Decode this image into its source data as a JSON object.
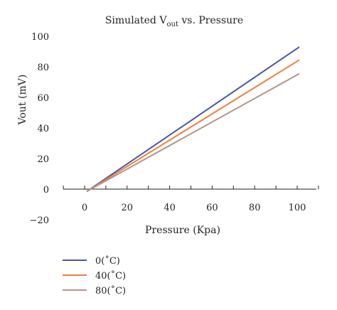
{
  "chart_data": {
    "type": "line",
    "title": {
      "prefix": "Simulated V",
      "subscript": "out",
      "suffix": " vs. Pressure"
    },
    "xlabel": "Pressure (Kpa)",
    "ylabel": "Vout (mV)",
    "xlim": [
      -10,
      105
    ],
    "ylim": [
      -20,
      100
    ],
    "xticks": [
      0,
      20,
      40,
      60,
      80,
      100
    ],
    "yticks": [
      -20,
      0,
      20,
      40,
      60,
      80,
      100
    ],
    "xtick_labels": [
      "0",
      "20",
      "40",
      "60",
      "80",
      "100"
    ],
    "ytick_labels": [
      "−20",
      "0",
      "20",
      "40",
      "60",
      "80",
      "100"
    ],
    "grid": false,
    "legend_position": "bottom-left",
    "series": [
      {
        "name": "0(˚C)",
        "color": "#4756a6",
        "x": [
          1,
          101
        ],
        "y": [
          -1.5,
          93
        ]
      },
      {
        "name": "40(˚C)",
        "color": "#f07f3c",
        "x": [
          1,
          101
        ],
        "y": [
          -1.5,
          84.5
        ]
      },
      {
        "name": "80(˚C)",
        "color": "#b5948c",
        "x": [
          1,
          101
        ],
        "y": [
          -1.5,
          75.5
        ]
      }
    ]
  }
}
